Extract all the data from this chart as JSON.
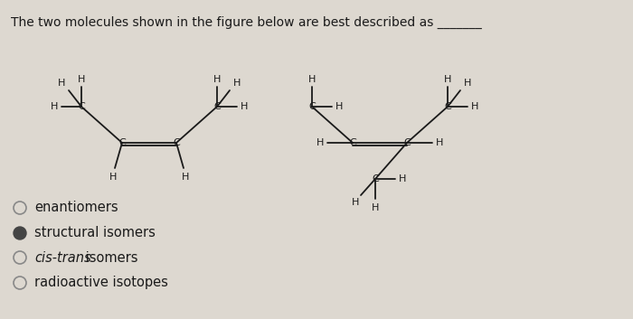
{
  "bg_color": "#ddd8d0",
  "title_text": "The two molecules shown in the figure below are best described as _______",
  "font_color": "#1a1a1a",
  "mol_color": "#1a1a1a",
  "radio_options": [
    {
      "text": "enantiomers",
      "filled": false,
      "bold": false
    },
    {
      "text": "structural isomers",
      "filled": true,
      "bold": false
    },
    {
      "text_italic": "cis-trans",
      "text_rest": " isomers",
      "filled": false
    },
    {
      "text": "radioactive isotopes",
      "filled": false,
      "bold": false
    }
  ]
}
